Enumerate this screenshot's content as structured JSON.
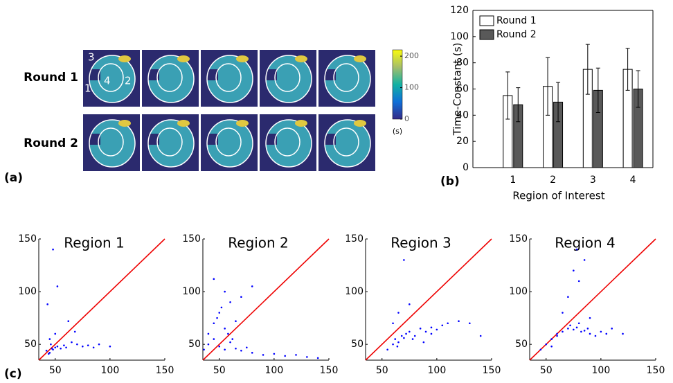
{
  "panel_a": {
    "label": "(a)",
    "rows": [
      "Round 1",
      "Round 2"
    ],
    "region_labels": [
      "3",
      "1",
      "4",
      "2"
    ],
    "colorbar": {
      "lim": [
        0,
        220
      ],
      "ticks": [
        0,
        100,
        200
      ],
      "unit": "(s)"
    }
  },
  "chart_data": [
    {
      "type": "bar",
      "panel_label": "(b)",
      "y_label": "Time-Constant (s)",
      "x_label": "Region of Interest",
      "categories": [
        "1",
        "2",
        "3",
        "4"
      ],
      "ylim": [
        0,
        120
      ],
      "yticks": [
        0,
        20,
        40,
        60,
        80,
        100,
        120
      ],
      "legend": "upper-left",
      "series": [
        {
          "name": "Round 1",
          "color": "#ffffff",
          "values": [
            55,
            62,
            75,
            75
          ],
          "errors": [
            18,
            22,
            19,
            16
          ]
        },
        {
          "name": "Round 2",
          "color": "#595959",
          "values": [
            48,
            50,
            59,
            60
          ],
          "errors": [
            13,
            15,
            17,
            14
          ]
        }
      ]
    },
    {
      "type": "scatter",
      "panel_label": "(c)",
      "title": "Region 1",
      "color": "#0000ff",
      "line_color": "#ee0000",
      "xlim": [
        35,
        150
      ],
      "ylim": [
        35,
        150
      ],
      "xticks": [
        50,
        100,
        150
      ],
      "yticks": [
        50,
        100,
        150
      ],
      "x": [
        42,
        45,
        47,
        48,
        50,
        52,
        44,
        46,
        55,
        58,
        60,
        65,
        70,
        75,
        80,
        85,
        90,
        100,
        48,
        52,
        43,
        50,
        62,
        45,
        68
      ],
      "values": [
        44,
        42,
        46,
        45,
        47,
        48,
        41,
        50,
        46,
        49,
        47,
        52,
        50,
        48,
        49,
        47,
        50,
        48,
        140,
        105,
        88,
        60,
        72,
        55,
        62
      ]
    },
    {
      "type": "scatter",
      "title": "Region 2",
      "color": "#0000ff",
      "line_color": "#ee0000",
      "xlim": [
        35,
        150
      ],
      "ylim": [
        35,
        150
      ],
      "xticks": [
        50,
        100,
        150
      ],
      "yticks": [
        50,
        100,
        150
      ],
      "x": [
        40,
        45,
        50,
        55,
        60,
        65,
        70,
        75,
        80,
        90,
        100,
        110,
        120,
        130,
        140,
        45,
        50,
        55,
        60,
        36,
        40,
        48,
        52,
        58,
        62,
        70,
        80,
        45,
        55,
        65
      ],
      "values": [
        50,
        55,
        48,
        45,
        52,
        46,
        44,
        47,
        42,
        40,
        41,
        39,
        40,
        38,
        37,
        70,
        80,
        65,
        90,
        45,
        60,
        75,
        85,
        60,
        55,
        95,
        105,
        112,
        100,
        72
      ]
    },
    {
      "type": "scatter",
      "title": "Region 3",
      "color": "#0000ff",
      "line_color": "#ee0000",
      "xlim": [
        35,
        150
      ],
      "ylim": [
        35,
        150
      ],
      "xticks": [
        50,
        100,
        150
      ],
      "yticks": [
        50,
        100,
        150
      ],
      "x": [
        55,
        60,
        62,
        65,
        68,
        70,
        72,
        75,
        80,
        85,
        90,
        95,
        100,
        105,
        110,
        120,
        130,
        60,
        65,
        70,
        75,
        88,
        95,
        78,
        140,
        64
      ],
      "values": [
        45,
        50,
        55,
        52,
        58,
        56,
        60,
        62,
        58,
        65,
        62,
        66,
        64,
        68,
        70,
        72,
        70,
        70,
        80,
        130,
        88,
        52,
        60,
        55,
        58,
        48
      ]
    },
    {
      "type": "scatter",
      "title": "Region 4",
      "color": "#0000ff",
      "line_color": "#ee0000",
      "xlim": [
        35,
        150
      ],
      "ylim": [
        35,
        150
      ],
      "xticks": [
        50,
        100,
        150
      ],
      "yticks": [
        50,
        100,
        150
      ],
      "x": [
        60,
        65,
        70,
        72,
        75,
        78,
        80,
        82,
        85,
        88,
        90,
        95,
        100,
        105,
        110,
        50,
        55,
        60,
        65,
        70,
        80,
        85,
        75,
        78,
        90,
        120,
        45,
        55
      ],
      "values": [
        60,
        62,
        65,
        68,
        64,
        66,
        70,
        62,
        63,
        65,
        60,
        58,
        62,
        60,
        65,
        50,
        55,
        58,
        80,
        95,
        110,
        130,
        120,
        140,
        75,
        60,
        45,
        48
      ]
    }
  ]
}
